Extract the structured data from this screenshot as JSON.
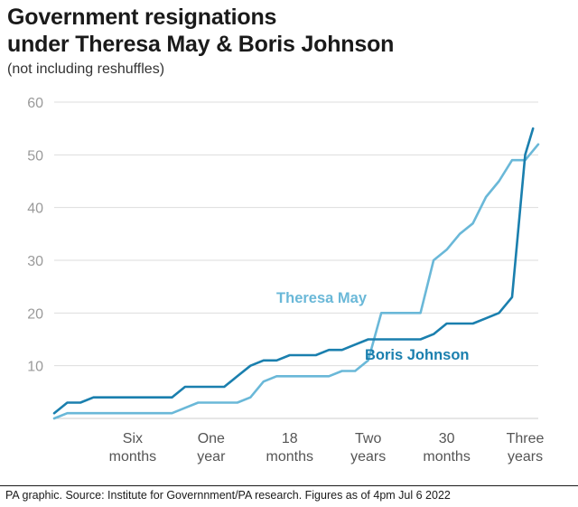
{
  "title": "Government resignations under Theresa May & Boris Johnson",
  "subtitle": "(not including reshuffles)",
  "footer": "PA graphic. Source: Institute for Governnment/PA research. Figures as of 4pm Jul 6 2022",
  "colors": {
    "may": "#6ab8d8",
    "johnson": "#1a7fae",
    "grid": "#dddddd",
    "axis": "#cccccc",
    "tick_text": "#9a9a9a"
  },
  "chart_data": {
    "type": "line",
    "title": "Government resignations under Theresa May & Boris Johnson",
    "subtitle": "(not including reshuffles)",
    "xlabel": "",
    "ylabel": "",
    "xlim": [
      0,
      37
    ],
    "ylim": [
      0,
      60
    ],
    "grid": true,
    "yticks": [
      "60",
      "50",
      "40",
      "30",
      "20",
      "10"
    ],
    "xticks": [
      {
        "value": 6,
        "line1": "Six",
        "line2": "months"
      },
      {
        "value": 12,
        "line1": "One",
        "line2": "year"
      },
      {
        "value": 18,
        "line1": "18",
        "line2": "months"
      },
      {
        "value": 24,
        "line1": "Two",
        "line2": "years"
      },
      {
        "value": 30,
        "line1": "30",
        "line2": "months"
      },
      {
        "value": 36,
        "line1": "Three",
        "line2": "years"
      }
    ],
    "series": [
      {
        "name": "Theresa May",
        "color": "#6ab8d8",
        "points": [
          [
            0,
            0
          ],
          [
            1,
            1
          ],
          [
            2,
            1
          ],
          [
            9,
            1
          ],
          [
            10,
            2
          ],
          [
            11,
            3
          ],
          [
            14,
            3
          ],
          [
            15,
            4
          ],
          [
            16,
            7
          ],
          [
            17,
            8
          ],
          [
            21,
            8
          ],
          [
            22,
            9
          ],
          [
            23,
            9
          ],
          [
            24,
            11
          ],
          [
            25,
            20
          ],
          [
            28,
            20
          ],
          [
            29,
            30
          ],
          [
            30,
            32
          ],
          [
            31,
            35
          ],
          [
            32,
            37
          ],
          [
            33,
            42
          ],
          [
            34,
            45
          ],
          [
            35,
            49
          ],
          [
            36,
            49
          ],
          [
            37,
            52
          ]
        ]
      },
      {
        "name": "Boris Johnson",
        "color": "#1a7fae",
        "points": [
          [
            0,
            1
          ],
          [
            1,
            3
          ],
          [
            2,
            3
          ],
          [
            3,
            4
          ],
          [
            9,
            4
          ],
          [
            10,
            6
          ],
          [
            13,
            6
          ],
          [
            14,
            8
          ],
          [
            15,
            10
          ],
          [
            16,
            11
          ],
          [
            17,
            11
          ],
          [
            18,
            12
          ],
          [
            20,
            12
          ],
          [
            21,
            13
          ],
          [
            22,
            13
          ],
          [
            23,
            14
          ],
          [
            24,
            15
          ],
          [
            28,
            15
          ],
          [
            29,
            16
          ],
          [
            30,
            18
          ],
          [
            32,
            18
          ],
          [
            33,
            19
          ],
          [
            34,
            20
          ],
          [
            35,
            23
          ],
          [
            36,
            50
          ],
          [
            36.6,
            55
          ]
        ]
      }
    ],
    "series_labels": [
      "Theresa May",
      "Boris Johnson"
    ]
  }
}
